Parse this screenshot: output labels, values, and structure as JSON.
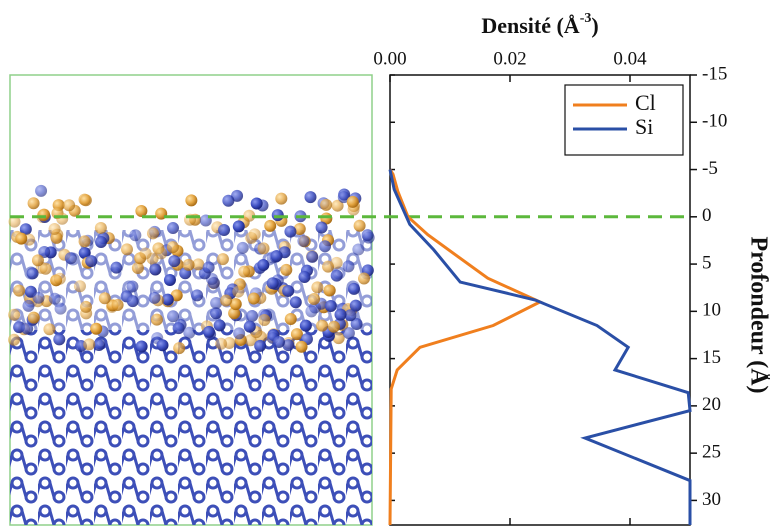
{
  "chart_data": {
    "type": "line",
    "x_label": {
      "text": "Densité (Å",
      "superscript": "-3",
      "suffix": ")"
    },
    "y_label": "Profondeur (Å)",
    "xlim": [
      0,
      0.05
    ],
    "xticks": [
      {
        "value": 0,
        "label": "0.00"
      },
      {
        "value": 0.02,
        "label": "0.02"
      },
      {
        "value": 0.04,
        "label": "0.04"
      }
    ],
    "ylim": [
      -15,
      32.6
    ],
    "y_inverted": true,
    "yticks": [
      -15,
      -10,
      -5,
      0,
      5,
      10,
      15,
      20,
      25,
      30
    ],
    "hline": {
      "value": 0,
      "color": "#5cb83c"
    },
    "legend": "top-right",
    "series": [
      {
        "name": "Cl",
        "color": "#f07f1e",
        "depth": [
          -5,
          -4.5,
          -2.7,
          0,
          1.9,
          6.5,
          9,
          11.5,
          13.8,
          16.2,
          18.2,
          32.6
        ],
        "values": [
          0,
          0.0005,
          0.0013,
          0.003,
          0.0063,
          0.0163,
          0.025,
          0.0172,
          0.005,
          0.0012,
          0.0002,
          0
        ]
      },
      {
        "name": "Si",
        "color": "#2a4fa6",
        "depth": [
          -5,
          -2.9,
          0.8,
          3.5,
          6.9,
          8.8,
          11.5,
          13.8,
          16.2,
          18.6,
          20.5,
          23.4,
          27.9,
          32.6
        ],
        "values": [
          0,
          0.0007,
          0.0033,
          0.0073,
          0.0117,
          0.0242,
          0.0345,
          0.0397,
          0.0375,
          0.0497,
          0.05,
          0.0325,
          0.05,
          0.05
        ]
      }
    ]
  }
}
